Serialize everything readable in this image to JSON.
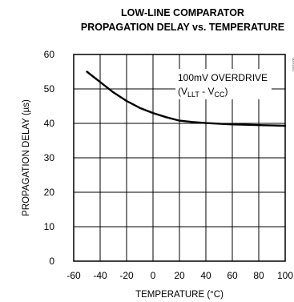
{
  "chart_data": {
    "type": "line",
    "title_line1": "LOW-LINE COMPARATOR",
    "title_line2": "PROPAGATION DELAY vs. TEMPERATURE",
    "xlabel": "TEMPERATURE (°C)",
    "ylabel": "PROPAGATION DELAY (µs)",
    "xlim": [
      -60,
      100
    ],
    "ylim": [
      0,
      60
    ],
    "x_ticks": [
      "-60",
      "-40",
      "-20",
      "0",
      "20",
      "40",
      "60",
      "80",
      "100"
    ],
    "y_ticks": [
      "0",
      "10",
      "20",
      "30",
      "40",
      "50",
      "60"
    ],
    "grid": true,
    "annotation_line1": "100mV OVERDRIVE",
    "annotation_line2": {
      "prefix": "(V",
      "sub1": "LLT",
      "middle": " - V",
      "sub2": "CC",
      "suffix": ")"
    },
    "side_id": "MAX6461",
    "series": [
      {
        "x": [
          -50,
          -40,
          -30,
          -20,
          -10,
          0,
          10,
          20,
          30,
          40,
          50,
          60,
          70,
          80,
          90,
          100
        ],
        "values": [
          55.0,
          52.0,
          49.0,
          46.5,
          44.5,
          43.0,
          41.8,
          40.8,
          40.4,
          40.1,
          39.9,
          39.7,
          39.6,
          39.5,
          39.4,
          39.3
        ]
      }
    ]
  }
}
